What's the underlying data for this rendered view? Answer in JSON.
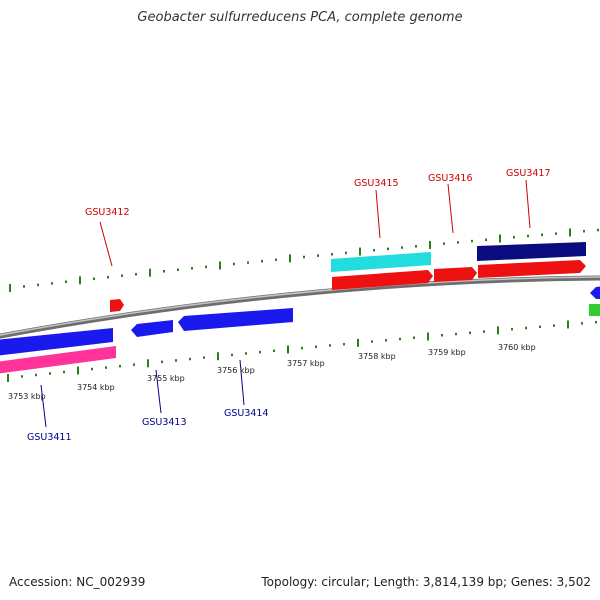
{
  "title": "Geobacter sulfurreducens PCA, complete genome",
  "footer": {
    "accession": "Accession: NC_002939",
    "summary": "Topology: circular; Length: 3,814,139 bp; Genes: 3,502"
  },
  "colors": {
    "backbone": "#808080",
    "tick_marks": "#2e7d1e",
    "forward_label": "#cc0000",
    "reverse_label": "#00008b"
  },
  "scale_labels": [
    "3753 kbp",
    "3754 kbp",
    "3755 kbp",
    "3756 kbp",
    "3757 kbp",
    "3758 kbp",
    "3759 kbp",
    "3760 kbp"
  ],
  "gene_labels": [
    {
      "id": "GSU3411",
      "strand": "reverse"
    },
    {
      "id": "GSU3412",
      "strand": "forward"
    },
    {
      "id": "GSU3413",
      "strand": "reverse"
    },
    {
      "id": "GSU3414",
      "strand": "reverse"
    },
    {
      "id": "GSU3415",
      "strand": "forward"
    },
    {
      "id": "GSU3416",
      "strand": "forward"
    },
    {
      "id": "GSU3417",
      "strand": "forward"
    }
  ],
  "feature_colors": {
    "forward_cds": "#ee1111",
    "reverse_cds": "#1a1aee",
    "rna_forward": "#22dddd",
    "rna_reverse": "#ff3399",
    "navy": "#0b0b80",
    "green": "#33cc33"
  }
}
